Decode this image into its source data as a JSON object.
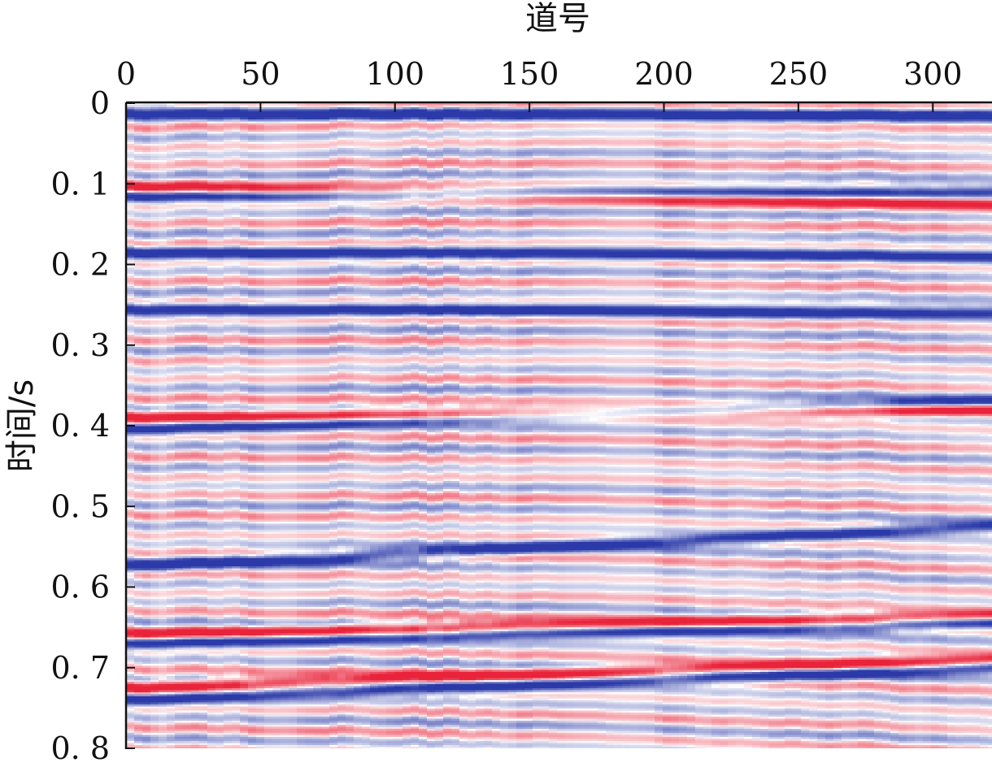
{
  "chart_data": {
    "type": "heatmap",
    "title": "",
    "xlabel": "道号",
    "ylabel": "时间/s",
    "x_axis_position": "top",
    "xlim": [
      0,
      322
    ],
    "ylim": [
      0,
      0.8
    ],
    "y_inverted": true,
    "x_ticks": [
      0,
      50,
      100,
      150,
      200,
      250,
      300
    ],
    "x_tick_labels": [
      "0",
      "50",
      "100",
      "150",
      "200",
      "250",
      "300"
    ],
    "y_ticks": [
      0,
      0.1,
      0.2,
      0.3,
      0.4,
      0.5,
      0.6,
      0.7,
      0.8
    ],
    "y_tick_labels": [
      "0",
      "0. 1",
      "0. 2",
      "0. 3",
      "0. 4",
      "0. 5",
      "0. 6",
      "0. 7",
      "0. 8"
    ],
    "grid": false,
    "colormap": [
      "#2b3aa8",
      "#ffffff",
      "#e8233a"
    ],
    "colormap_description": "blue-white-red diverging (seismic amplitude)",
    "dominant_reflectors": [
      {
        "polarity": "negative",
        "time_at_trace_0": 0.012,
        "time_at_trace_322": 0.015
      },
      {
        "polarity": "positive",
        "time_at_trace_0": 0.105,
        "time_at_trace_322": 0.125
      },
      {
        "polarity": "negative",
        "time_at_trace_0": 0.115,
        "time_at_trace_322": 0.11
      },
      {
        "polarity": "negative",
        "time_at_trace_0": 0.185,
        "time_at_trace_322": 0.19
      },
      {
        "polarity": "negative",
        "time_at_trace_0": 0.255,
        "time_at_trace_322": 0.26
      },
      {
        "polarity": "positive",
        "time_at_trace_0": 0.39,
        "time_at_trace_322": 0.38
      },
      {
        "polarity": "negative",
        "time_at_trace_0": 0.405,
        "time_at_trace_322": 0.37
      },
      {
        "polarity": "negative",
        "time_at_trace_0": 0.575,
        "time_at_trace_322": 0.525
      },
      {
        "polarity": "positive",
        "time_at_trace_0": 0.66,
        "time_at_trace_322": 0.635
      },
      {
        "polarity": "negative",
        "time_at_trace_0": 0.67,
        "time_at_trace_322": 0.645
      },
      {
        "polarity": "positive",
        "time_at_trace_0": 0.725,
        "time_at_trace_322": 0.69
      },
      {
        "polarity": "negative",
        "time_at_trace_0": 0.74,
        "time_at_trace_322": 0.7
      }
    ]
  }
}
